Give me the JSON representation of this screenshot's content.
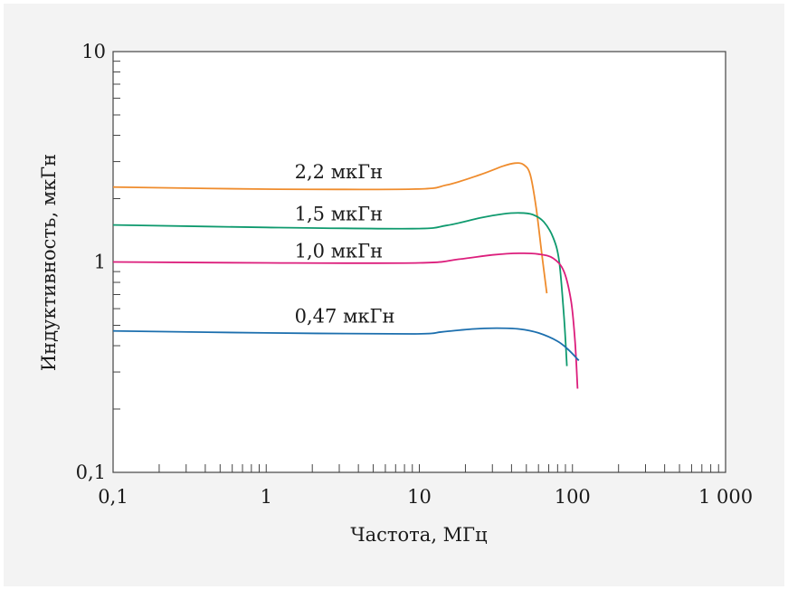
{
  "chart_data": {
    "type": "line",
    "xscale": "log",
    "yscale": "log",
    "xlim": [
      0.1,
      1000
    ],
    "ylim": [
      0.1,
      10
    ],
    "xlabel": "Частота, МГц",
    "ylabel": "Индуктивность, мкГн",
    "xticks": [
      {
        "v": 0.1,
        "label": "0,1"
      },
      {
        "v": 1,
        "label": "1"
      },
      {
        "v": 10,
        "label": "10"
      },
      {
        "v": 100,
        "label": "100"
      },
      {
        "v": 1000,
        "label": "1 000"
      }
    ],
    "yticks": [
      {
        "v": 0.1,
        "label": "0,1"
      },
      {
        "v": 1,
        "label": "1"
      },
      {
        "v": 10,
        "label": "10"
      }
    ],
    "grid": false,
    "series": [
      {
        "name": "2,2 мкГн",
        "color": "#ef8c2d",
        "label_at": [
          1.2,
          2.5
        ],
        "points": [
          [
            0.1,
            2.27
          ],
          [
            1,
            2.22
          ],
          [
            9,
            2.22
          ],
          [
            15,
            2.32
          ],
          [
            25,
            2.6
          ],
          [
            35,
            2.85
          ],
          [
            42,
            2.95
          ],
          [
            48,
            2.9
          ],
          [
            53,
            2.6
          ],
          [
            58,
            1.8
          ],
          [
            63,
            1.1
          ],
          [
            68,
            0.71
          ]
        ]
      },
      {
        "name": "1,5 мкГн",
        "color": "#0f9a6e",
        "label_at": [
          1.2,
          1.58
        ],
        "points": [
          [
            0.1,
            1.5
          ],
          [
            1,
            1.46
          ],
          [
            9,
            1.44
          ],
          [
            15,
            1.49
          ],
          [
            25,
            1.62
          ],
          [
            35,
            1.69
          ],
          [
            45,
            1.71
          ],
          [
            55,
            1.68
          ],
          [
            65,
            1.55
          ],
          [
            75,
            1.3
          ],
          [
            82,
            1.0
          ],
          [
            88,
            0.55
          ],
          [
            92,
            0.32
          ]
        ]
      },
      {
        "name": "1,0 мкГн",
        "color": "#dc1e7c",
        "label_at": [
          1.2,
          1.05
        ],
        "points": [
          [
            0.1,
            1.0
          ],
          [
            1,
            0.99
          ],
          [
            10,
            0.99
          ],
          [
            18,
            1.03
          ],
          [
            30,
            1.08
          ],
          [
            45,
            1.1
          ],
          [
            60,
            1.09
          ],
          [
            75,
            1.04
          ],
          [
            88,
            0.9
          ],
          [
            98,
            0.65
          ],
          [
            104,
            0.42
          ],
          [
            108,
            0.25
          ]
        ]
      },
      {
        "name": "0,47 мкГн",
        "color": "#1c6fae",
        "label_at": [
          1.2,
          0.515
        ],
        "points": [
          [
            0.1,
            0.47
          ],
          [
            1,
            0.46
          ],
          [
            9,
            0.455
          ],
          [
            14,
            0.465
          ],
          [
            22,
            0.48
          ],
          [
            32,
            0.485
          ],
          [
            45,
            0.48
          ],
          [
            60,
            0.46
          ],
          [
            80,
            0.42
          ],
          [
            95,
            0.38
          ],
          [
            110,
            0.34
          ]
        ]
      }
    ]
  }
}
